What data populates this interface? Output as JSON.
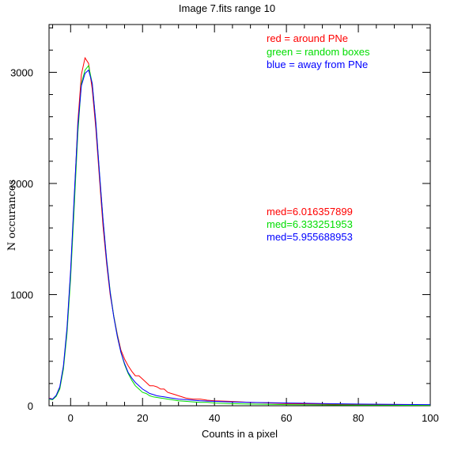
{
  "chart_data": {
    "type": "line",
    "title": "Image 7.fits   range 10",
    "xlabel": "Counts in a pixel",
    "ylabel": "N occurances",
    "xlim": [
      -6,
      100
    ],
    "ylim": [
      0,
      3430
    ],
    "xticks": [
      0,
      20,
      40,
      60,
      80,
      100
    ],
    "yticks": [
      0,
      1000,
      2000,
      3000
    ],
    "xtick_labels": [
      "0",
      "20",
      "40",
      "60",
      "80",
      "100"
    ],
    "ytick_labels": [
      "0",
      "1000",
      "2000",
      "3000"
    ],
    "grid": false,
    "legend": [
      {
        "text": "red = around PNe",
        "color": "#ff0000"
      },
      {
        "text": "green = random boxes",
        "color": "#00dd00"
      },
      {
        "text": "blue = away from PNe",
        "color": "#0000ff"
      }
    ],
    "annotations": [
      {
        "text": "med=6.016357899",
        "color": "#ff0000"
      },
      {
        "text": "med=6.333251953",
        "color": "#00dd00"
      },
      {
        "text": "med=5.955688953",
        "color": "#0000ff"
      }
    ],
    "series": [
      {
        "color": "#ff0000",
        "x": [
          -6,
          -5,
          -4,
          -3,
          -2,
          -1,
          0,
          1,
          2,
          3,
          4,
          5,
          6,
          7,
          8,
          9,
          10,
          11,
          12,
          13,
          14,
          15,
          16,
          17,
          18,
          19,
          20,
          21,
          22,
          23,
          24,
          25,
          26,
          27,
          28,
          29,
          30,
          32,
          34,
          36,
          38,
          40,
          44,
          50,
          60,
          70,
          80,
          90,
          100
        ],
        "y": [
          70,
          60,
          90,
          160,
          350,
          680,
          1200,
          1850,
          2550,
          2980,
          3130,
          3080,
          2850,
          2500,
          2050,
          1620,
          1280,
          1000,
          810,
          640,
          500,
          420,
          360,
          310,
          270,
          270,
          240,
          210,
          180,
          180,
          170,
          150,
          150,
          120,
          110,
          100,
          90,
          70,
          60,
          60,
          50,
          45,
          40,
          30,
          20,
          15,
          10,
          8,
          5
        ]
      },
      {
        "color": "#00dd00",
        "x": [
          -6,
          -5,
          -4,
          -3,
          -2,
          -1,
          0,
          1,
          2,
          3,
          4,
          5,
          6,
          7,
          8,
          9,
          10,
          11,
          12,
          13,
          14,
          15,
          16,
          17,
          18,
          19,
          20,
          21,
          22,
          23,
          24,
          25,
          26,
          27,
          28,
          29,
          30,
          32,
          34,
          36,
          38,
          40,
          44,
          50,
          60,
          70,
          80,
          90,
          100
        ],
        "y": [
          60,
          55,
          85,
          150,
          330,
          650,
          1150,
          1780,
          2450,
          2900,
          3020,
          3060,
          2900,
          2560,
          2100,
          1680,
          1320,
          1030,
          810,
          630,
          480,
          370,
          290,
          230,
          180,
          150,
          120,
          110,
          90,
          80,
          75,
          70,
          65,
          60,
          55,
          50,
          45,
          40,
          35,
          30,
          30,
          25,
          20,
          15,
          10,
          8,
          5,
          4,
          3
        ]
      },
      {
        "color": "#0000ff",
        "x": [
          -6,
          -5,
          -4,
          -3,
          -2,
          -1,
          0,
          1,
          2,
          3,
          4,
          5,
          6,
          7,
          8,
          9,
          10,
          11,
          12,
          13,
          14,
          15,
          16,
          17,
          18,
          19,
          20,
          21,
          22,
          23,
          24,
          25,
          26,
          27,
          28,
          29,
          30,
          32,
          34,
          36,
          38,
          40,
          44,
          50,
          60,
          70,
          80,
          90,
          100
        ],
        "y": [
          65,
          60,
          95,
          170,
          360,
          700,
          1220,
          1880,
          2520,
          2880,
          2990,
          3020,
          2900,
          2550,
          2100,
          1680,
          1310,
          1020,
          800,
          620,
          480,
          380,
          300,
          250,
          210,
          180,
          150,
          130,
          110,
          100,
          90,
          85,
          80,
          75,
          70,
          65,
          60,
          55,
          50,
          45,
          42,
          40,
          35,
          30,
          25,
          20,
          15,
          12,
          10
        ]
      }
    ]
  }
}
